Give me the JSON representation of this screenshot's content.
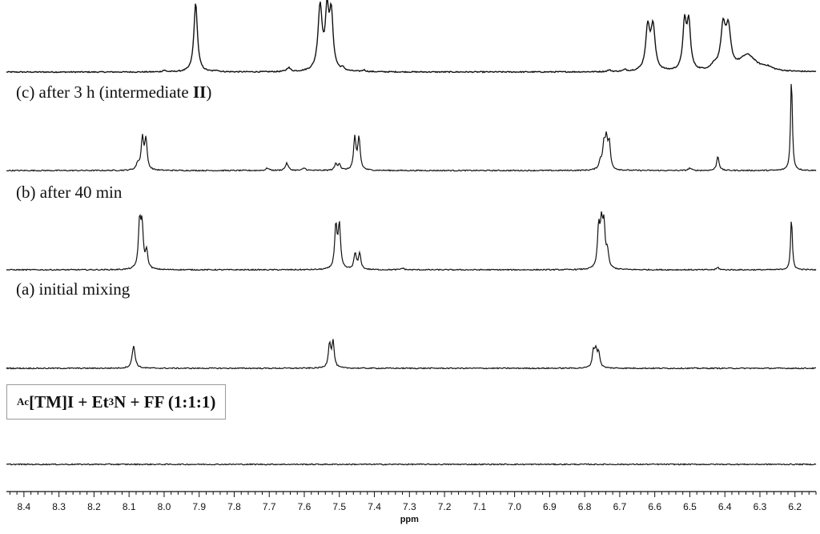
{
  "chart_data": {
    "type": "line",
    "title": "",
    "xlabel": "ppm",
    "ylabel": "",
    "xlim": [
      8.45,
      6.14
    ],
    "x_reversed": true,
    "grid": false,
    "x_ticks": [
      8.4,
      8.3,
      8.2,
      8.1,
      8.0,
      7.9,
      7.8,
      7.7,
      7.6,
      7.5,
      7.4,
      7.3,
      7.2,
      7.1,
      7.0,
      6.9,
      6.8,
      6.7,
      6.6,
      6.5,
      6.4,
      6.3,
      6.2
    ],
    "x_tick_labels": [
      "8.4",
      "8.3",
      "8.2",
      "8.1",
      "8.0",
      "7.9",
      "7.8",
      "7.7",
      "7.6",
      "7.5",
      "7.4",
      "7.3",
      "7.2",
      "7.1",
      "7.0",
      "6.9",
      "6.8",
      "6.7",
      "6.6",
      "6.5",
      "6.4",
      "6.3",
      "6.2"
    ],
    "spectra": [
      {
        "label": "",
        "peaks": [
          {
            "ppm": 8.0,
            "height": 2,
            "width": 0.005
          },
          {
            "ppm": 7.91,
            "height": 86,
            "width": 0.006
          },
          {
            "ppm": 7.85,
            "height": 2,
            "width": 0.005
          },
          {
            "ppm": 7.645,
            "height": 5,
            "width": 0.006
          },
          {
            "ppm": 7.555,
            "height": 80,
            "width": 0.007
          },
          {
            "ppm": 7.535,
            "height": 70,
            "width": 0.006
          },
          {
            "ppm": 7.523,
            "height": 68,
            "width": 0.006
          },
          {
            "ppm": 7.49,
            "height": 3,
            "width": 0.005
          },
          {
            "ppm": 7.43,
            "height": 2,
            "width": 0.005
          },
          {
            "ppm": 6.73,
            "height": 2,
            "width": 0.006
          },
          {
            "ppm": 6.685,
            "height": 2,
            "width": 0.006
          },
          {
            "ppm": 6.62,
            "height": 54,
            "width": 0.007
          },
          {
            "ppm": 6.605,
            "height": 54,
            "width": 0.007
          },
          {
            "ppm": 6.515,
            "height": 58,
            "width": 0.006
          },
          {
            "ppm": 6.503,
            "height": 58,
            "width": 0.006
          },
          {
            "ppm": 6.43,
            "height": 6,
            "width": 0.01
          },
          {
            "ppm": 6.405,
            "height": 52,
            "width": 0.008
          },
          {
            "ppm": 6.39,
            "height": 48,
            "width": 0.008
          },
          {
            "ppm": 6.335,
            "height": 20,
            "width": 0.028
          },
          {
            "ppm": 6.28,
            "height": 4,
            "width": 0.02
          }
        ]
      },
      {
        "label": "(c) after 3 h (intermediate II)",
        "peaks": [
          {
            "ppm": 8.075,
            "height": 8,
            "width": 0.005
          },
          {
            "ppm": 8.062,
            "height": 40,
            "width": 0.004
          },
          {
            "ppm": 8.052,
            "height": 38,
            "width": 0.004
          },
          {
            "ppm": 7.705,
            "height": 3,
            "width": 0.005
          },
          {
            "ppm": 7.65,
            "height": 9,
            "width": 0.005
          },
          {
            "ppm": 7.6,
            "height": 3,
            "width": 0.005
          },
          {
            "ppm": 7.51,
            "height": 8,
            "width": 0.004
          },
          {
            "ppm": 7.5,
            "height": 8,
            "width": 0.004
          },
          {
            "ppm": 7.456,
            "height": 40,
            "width": 0.004
          },
          {
            "ppm": 7.444,
            "height": 40,
            "width": 0.004
          },
          {
            "ppm": 6.755,
            "height": 10,
            "width": 0.005
          },
          {
            "ppm": 6.745,
            "height": 30,
            "width": 0.004
          },
          {
            "ppm": 6.738,
            "height": 34,
            "width": 0.004
          },
          {
            "ppm": 6.73,
            "height": 32,
            "width": 0.004
          },
          {
            "ppm": 6.5,
            "height": 3,
            "width": 0.005
          },
          {
            "ppm": 6.42,
            "height": 18,
            "width": 0.004
          },
          {
            "ppm": 6.21,
            "height": 116,
            "width": 0.003
          }
        ]
      },
      {
        "label": "(b) after 40 min",
        "peaks": [
          {
            "ppm": 8.07,
            "height": 56,
            "width": 0.004
          },
          {
            "ppm": 8.063,
            "height": 52,
            "width": 0.004
          },
          {
            "ppm": 8.05,
            "height": 22,
            "width": 0.004
          },
          {
            "ppm": 7.51,
            "height": 54,
            "width": 0.004
          },
          {
            "ppm": 7.5,
            "height": 54,
            "width": 0.004
          },
          {
            "ppm": 7.455,
            "height": 20,
            "width": 0.004
          },
          {
            "ppm": 7.442,
            "height": 20,
            "width": 0.004
          },
          {
            "ppm": 7.32,
            "height": 2,
            "width": 0.005
          },
          {
            "ppm": 6.76,
            "height": 50,
            "width": 0.004
          },
          {
            "ppm": 6.752,
            "height": 50,
            "width": 0.004
          },
          {
            "ppm": 6.745,
            "height": 50,
            "width": 0.004
          },
          {
            "ppm": 6.735,
            "height": 20,
            "width": 0.004
          },
          {
            "ppm": 6.42,
            "height": 3,
            "width": 0.004
          },
          {
            "ppm": 6.21,
            "height": 64,
            "width": 0.003
          }
        ]
      },
      {
        "label": "(a) initial mixing",
        "peaks": [
          {
            "ppm": 8.087,
            "height": 28,
            "width": 0.005
          },
          {
            "ppm": 7.528,
            "height": 30,
            "width": 0.004
          },
          {
            "ppm": 7.518,
            "height": 32,
            "width": 0.004
          },
          {
            "ppm": 6.775,
            "height": 20,
            "width": 0.004
          },
          {
            "ppm": 6.768,
            "height": 20,
            "width": 0.004
          },
          {
            "ppm": 6.76,
            "height": 18,
            "width": 0.004
          }
        ]
      },
      {
        "label": "",
        "peaks": []
      }
    ],
    "legend": {
      "text_parts": [
        {
          "text": "Ac",
          "style": "sup"
        },
        {
          "text": "[TM]I + Et",
          "style": "normal"
        },
        {
          "text": "3",
          "style": "sub"
        },
        {
          "text": "N + FF (1:1:1)",
          "style": "normal"
        }
      ],
      "placement": "bottom-left"
    }
  },
  "labels": {
    "c_prefix": "(c) after 3 h (intermediate ",
    "c_bold": "II",
    "c_suffix": ")",
    "b": "(b) after 40 min",
    "a": "(a) initial mixing"
  }
}
